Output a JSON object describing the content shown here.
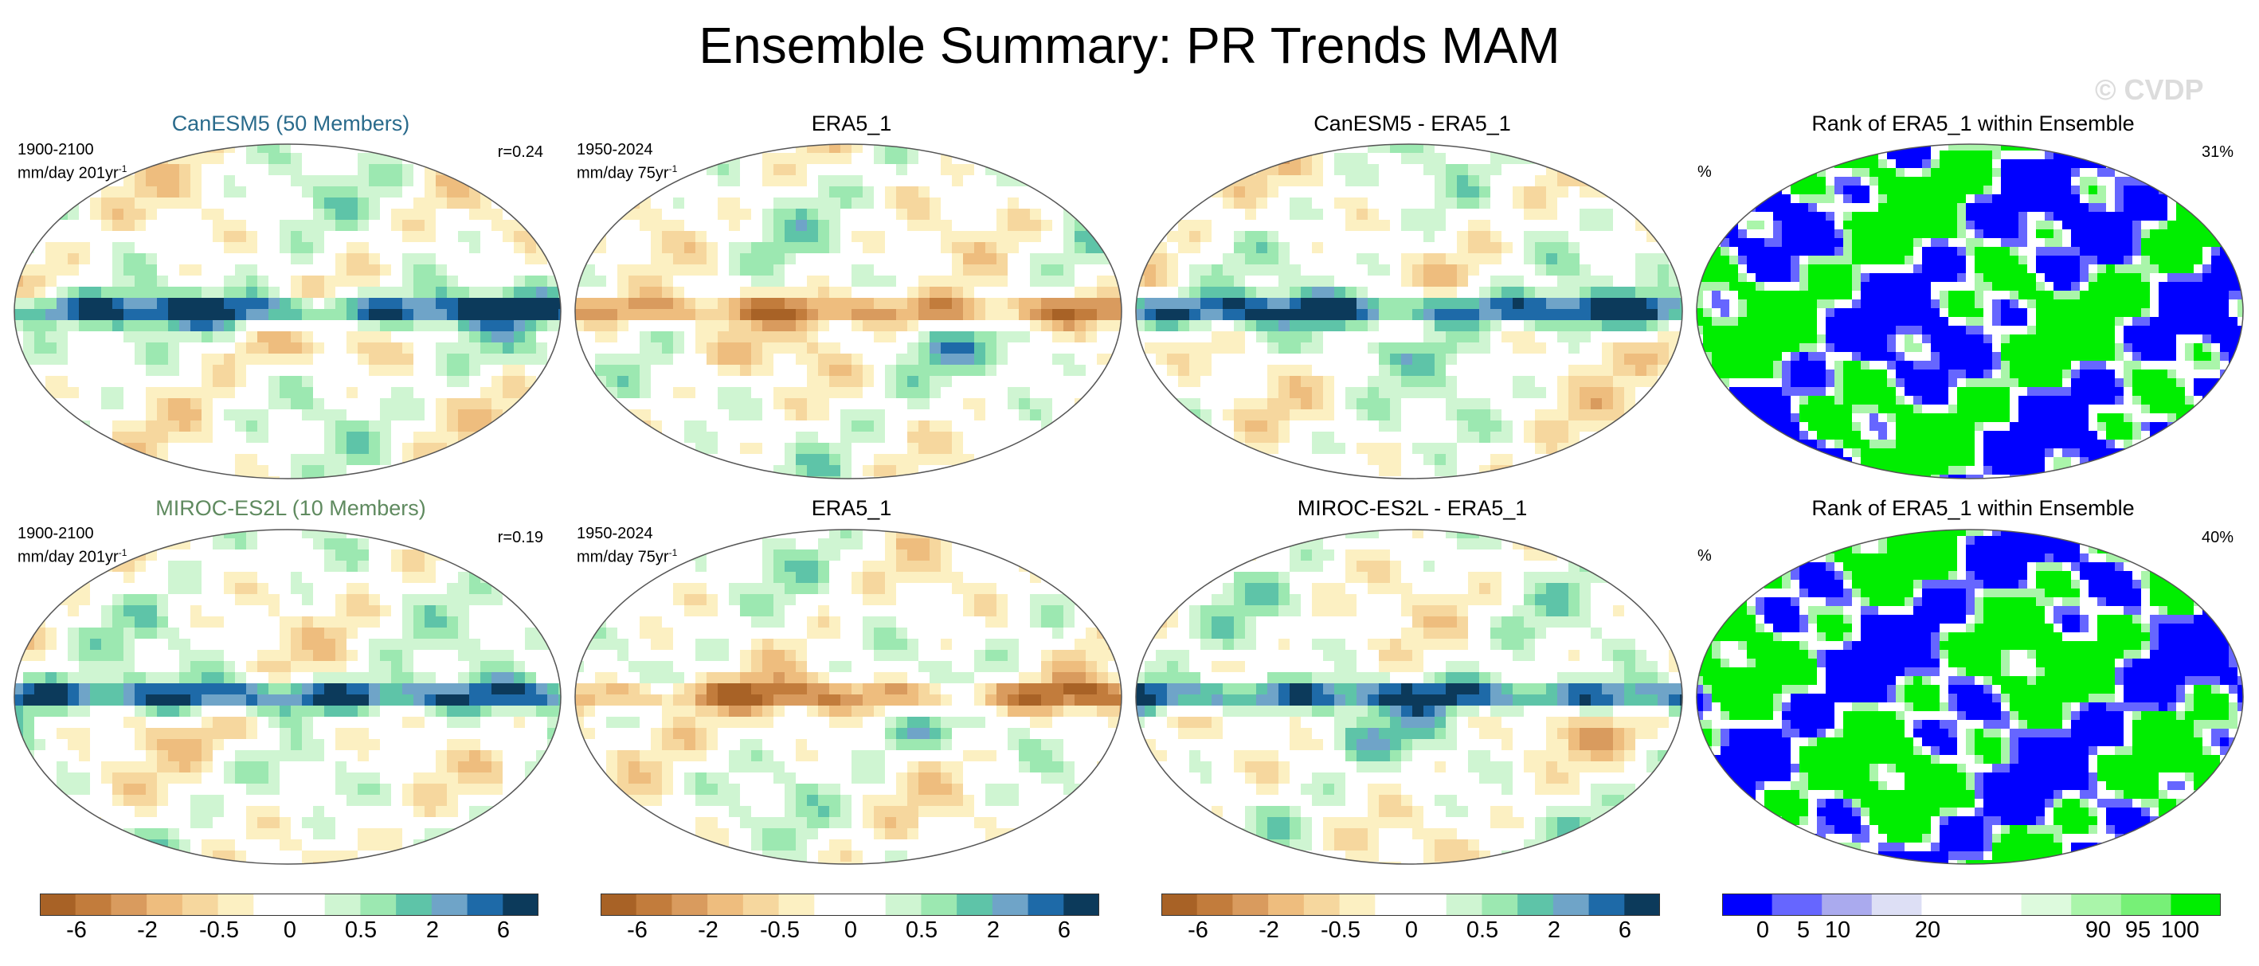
{
  "title": "Ensemble Summary: PR Trends MAM",
  "watermark": "© CVDP",
  "colors": {
    "diverging": [
      "#a86226",
      "#c27c3c",
      "#d99b5e",
      "#eebd7e",
      "#f6d79e",
      "#fcf0c2",
      "#ffffff",
      "#ffffff",
      "#cff5d2",
      "#9ce8b1",
      "#5ec4a8",
      "#6fa4c8",
      "#1e6aa8",
      "#0c3a5b"
    ],
    "rank": [
      "#0000ff",
      "#6666ff",
      "#aaaaee",
      "#dddff5",
      "#ffffff",
      "#ffffff",
      "#ddfadd",
      "#aaf5aa",
      "#77f077",
      "#00ee00"
    ],
    "text_blue": "#2a6b8c",
    "text_green": "#5f8a5f"
  },
  "rows": [
    {
      "panels": [
        {
          "title": "CanESM5 (50 Members)",
          "period": "1900-2100",
          "units": "mm/day 201yr",
          "units_sup": "-1",
          "corr": "r=0.24",
          "kind": "diverging"
        },
        {
          "title": "ERA5_1",
          "period": "1950-2024",
          "units": "mm/day 75yr",
          "units_sup": "-1",
          "corr": "",
          "kind": "diverging"
        },
        {
          "title": "CanESM5 - ERA5_1",
          "period": "",
          "units": "",
          "units_sup": "",
          "corr": "",
          "kind": "diverging"
        },
        {
          "title": "Rank of ERA5_1 within Ensemble",
          "period": "",
          "units": "%",
          "units_sup": "",
          "corr": "31%",
          "kind": "rank"
        }
      ]
    },
    {
      "panels": [
        {
          "title": "MIROC-ES2L (10 Members)",
          "period": "1900-2100",
          "units": "mm/day 201yr",
          "units_sup": "-1",
          "corr": "r=0.19",
          "kind": "diverging"
        },
        {
          "title": "ERA5_1",
          "period": "1950-2024",
          "units": "mm/day 75yr",
          "units_sup": "-1",
          "corr": "",
          "kind": "diverging"
        },
        {
          "title": "MIROC-ES2L - ERA5_1",
          "period": "",
          "units": "",
          "units_sup": "",
          "corr": "",
          "kind": "diverging"
        },
        {
          "title": "Rank of ERA5_1 within Ensemble",
          "period": "",
          "units": "%",
          "units_sup": "",
          "corr": "40%",
          "kind": "rank"
        }
      ]
    }
  ],
  "colorbars": {
    "diverging_ticks": [
      "-6",
      "-2",
      "-0.5",
      "0",
      "0.5",
      "2",
      "6"
    ],
    "rank_ticks": [
      "0",
      "5",
      "10",
      "20",
      "90",
      "95",
      "100"
    ]
  }
}
